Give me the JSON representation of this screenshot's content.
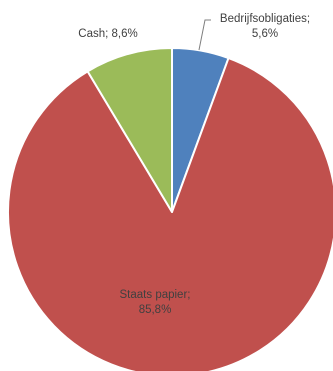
{
  "chart_data": {
    "type": "pie",
    "slices": [
      {
        "label": "Bedrijfsobligaties",
        "value": 5.6,
        "label_lines": [
          "Bedrijfsobligaties;",
          "5,6%"
        ],
        "color": "#4f81bd"
      },
      {
        "label": "Staats papier",
        "value": 85.8,
        "label_lines": [
          "Staats papier;",
          "85,8%"
        ],
        "color": "#c0504d"
      },
      {
        "label": "Cash",
        "value": 8.6,
        "label_lines": [
          "Cash; 8,6%"
        ],
        "color": "#9bbb59"
      }
    ],
    "start_angle_deg": 0,
    "direction": "clockwise",
    "legend": "none",
    "data_labels": "outside-with-leader-line"
  }
}
